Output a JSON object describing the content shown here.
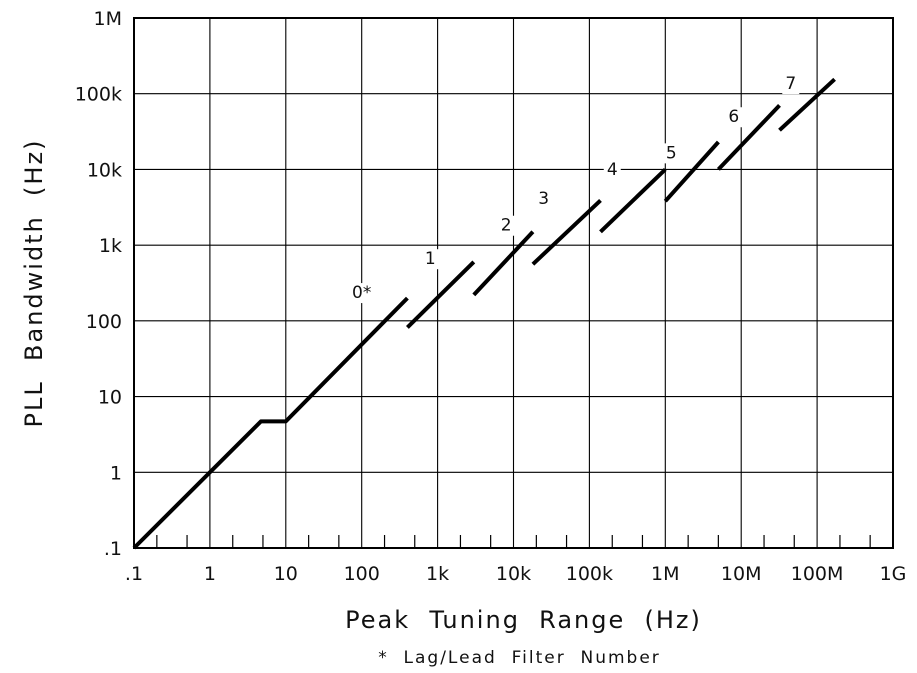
{
  "chart_data": {
    "type": "line",
    "x_scale": "log",
    "y_scale": "log",
    "xlim": [
      0.1,
      1000000000
    ],
    "ylim": [
      0.1,
      1000000
    ],
    "grid": true,
    "xlabel": "Peak  Tuning  Range  (Hz)",
    "ylabel": "PLL  Bandwidth  (Hz)",
    "note": "*  Lag/Lead  Filter  Number",
    "x_ticks": [
      {
        "value": 0.1,
        "label": ".1"
      },
      {
        "value": 1,
        "label": "1"
      },
      {
        "value": 10,
        "label": "10"
      },
      {
        "value": 100,
        "label": "100"
      },
      {
        "value": 1000,
        "label": "1k"
      },
      {
        "value": 10000,
        "label": "10k"
      },
      {
        "value": 100000,
        "label": "100k"
      },
      {
        "value": 1000000,
        "label": "1M"
      },
      {
        "value": 10000000,
        "label": "10M"
      },
      {
        "value": 100000000,
        "label": "100M"
      },
      {
        "value": 1000000000,
        "label": "1G"
      }
    ],
    "y_ticks": [
      {
        "value": 0.1,
        "label": ".1"
      },
      {
        "value": 1,
        "label": "1"
      },
      {
        "value": 10,
        "label": "10"
      },
      {
        "value": 100,
        "label": "100"
      },
      {
        "value": 1000,
        "label": "1k"
      },
      {
        "value": 10000,
        "label": "10k"
      },
      {
        "value": 100000,
        "label": "100k"
      },
      {
        "value": 1000000,
        "label": "1M"
      }
    ],
    "series": [
      {
        "label": "0*",
        "label_anchor": [
          100,
          200
        ],
        "points": [
          [
            0.1,
            0.1
          ],
          [
            4.7,
            4.7
          ],
          [
            10,
            4.7
          ],
          [
            400,
            200
          ]
        ]
      },
      {
        "label": "1",
        "label_anchor": [
          800,
          560
        ],
        "points": [
          [
            400,
            82
          ],
          [
            3000,
            600
          ]
        ]
      },
      {
        "label": "2",
        "label_anchor": [
          8000,
          1550
        ],
        "points": [
          [
            3000,
            220
          ],
          [
            18000,
            1500
          ]
        ]
      },
      {
        "label": "3",
        "label_anchor": [
          25000,
          3500
        ],
        "points": [
          [
            18000,
            560
          ],
          [
            140000,
            3900
          ]
        ]
      },
      {
        "label": "4",
        "label_anchor": [
          200000,
          8400
        ],
        "points": [
          [
            140000,
            1500
          ],
          [
            1000000,
            10000
          ]
        ]
      },
      {
        "label": "5",
        "label_anchor": [
          1200000,
          14000
        ],
        "points": [
          [
            1000000,
            3800
          ],
          [
            5000000,
            23000
          ]
        ]
      },
      {
        "label": "6",
        "label_anchor": [
          8000000,
          42000
        ],
        "points": [
          [
            5000000,
            10000
          ],
          [
            32000000,
            70000
          ]
        ]
      },
      {
        "label": "7",
        "label_anchor": [
          45000000,
          115000
        ],
        "points": [
          [
            32000000,
            33000
          ],
          [
            170000000,
            155000
          ]
        ]
      }
    ]
  }
}
